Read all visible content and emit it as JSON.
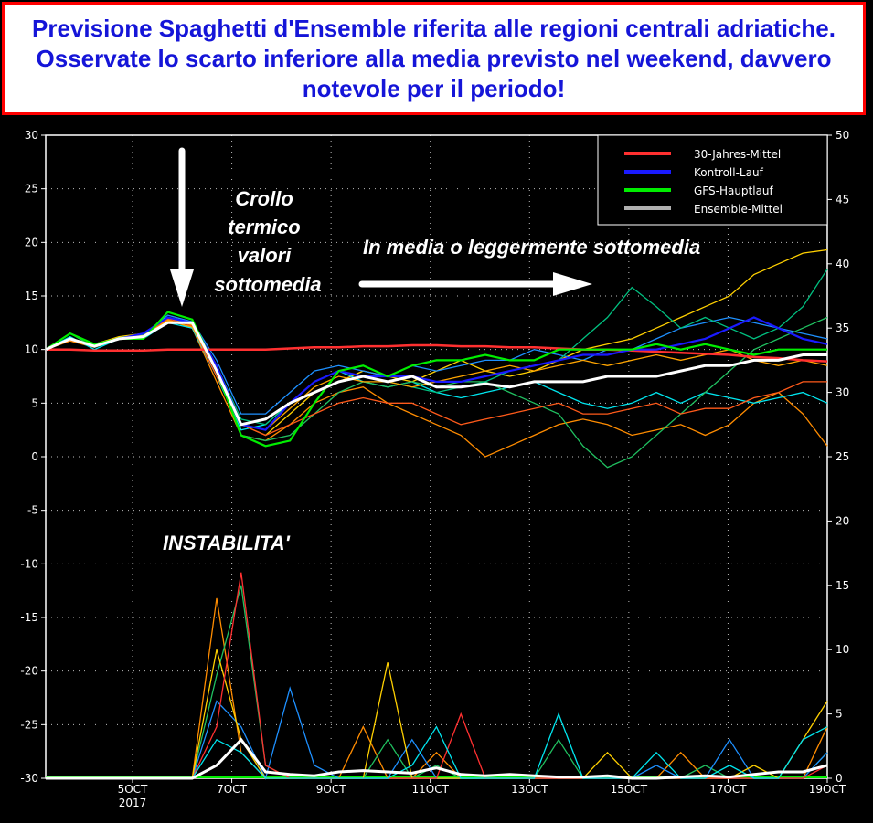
{
  "title": "Previsione Spaghetti d'Ensemble riferita alle regioni centrali adriatiche. Osservate lo scarto inferiore alla media previsto nel weekend, davvero notevole per il periodo!",
  "annotations": {
    "crollo": [
      "Crollo",
      "termico",
      "valori",
      "sottomedia"
    ],
    "media": "In media o leggermente sottomedia",
    "instabilita": "INSTABILITA'"
  },
  "chart_data": {
    "type": "line",
    "x_range_days": [
      3.25,
      19.0
    ],
    "x_ticks": [
      {
        "day": 5,
        "label": "5OCT",
        "sub": "2017"
      },
      {
        "day": 7,
        "label": "7OCT"
      },
      {
        "day": 9,
        "label": "9OCT"
      },
      {
        "day": 11,
        "label": "11OCT"
      },
      {
        "day": 13,
        "label": "13OCT"
      },
      {
        "day": 15,
        "label": "15OCT"
      },
      {
        "day": 17,
        "label": "17OCT"
      },
      {
        "day": 19,
        "label": "19OCT"
      }
    ],
    "ylim_left": [
      -30,
      30
    ],
    "y_ticks_left": [
      30,
      25,
      20,
      15,
      10,
      5,
      0,
      -5,
      -10,
      -15,
      -20,
      -25,
      -30
    ],
    "ylim_right": [
      0,
      50
    ],
    "y_ticks_right": [
      50,
      45,
      40,
      35,
      30,
      25,
      20,
      15,
      10,
      5,
      0
    ],
    "grid": true,
    "legend_position": "top-right",
    "legend": [
      {
        "name": "30-Jahres-Mittel",
        "color": "#ff3030"
      },
      {
        "name": "Kontroll-Lauf",
        "color": "#1a1aff"
      },
      {
        "name": "GFS-Hauptlauf",
        "color": "#00ee00"
      },
      {
        "name": "Ensemble-Mittel",
        "color": "#b0b0b0"
      }
    ],
    "temperature_series": [
      {
        "name": "member",
        "color": "#ff8c00",
        "values": [
          10,
          10.8,
          10.2,
          11,
          11.3,
          12.8,
          12,
          7,
          2,
          1.5,
          3,
          5,
          6,
          6.5,
          5,
          4,
          3,
          2,
          0,
          1,
          2,
          3,
          3.5,
          3,
          2,
          2.5,
          3,
          2,
          3,
          5,
          6,
          4,
          1
        ]
      },
      {
        "name": "member",
        "color": "#ffd000",
        "values": [
          10,
          11,
          10.5,
          11.2,
          11.5,
          13,
          12.3,
          8,
          3,
          2,
          4,
          6,
          7,
          8,
          7.5,
          7,
          8,
          9,
          8,
          7.5,
          8,
          9,
          10,
          10.5,
          11,
          12,
          13,
          14,
          15,
          17,
          18,
          19,
          19.3
        ]
      },
      {
        "name": "member",
        "color": "#00e5ee",
        "values": [
          10,
          11.2,
          10,
          11,
          11,
          12.5,
          12,
          7.5,
          2.5,
          3,
          5,
          7,
          8,
          7,
          6.5,
          7,
          6,
          5.5,
          6,
          6.5,
          7,
          6,
          5,
          4.5,
          5,
          6,
          5,
          6,
          5.5,
          5,
          5.5,
          6,
          5
        ]
      },
      {
        "name": "member",
        "color": "#1e90ff",
        "values": [
          10,
          11,
          10.4,
          11,
          11.4,
          13.2,
          12.6,
          9,
          4,
          4,
          6,
          8,
          8.5,
          8,
          7.5,
          8.5,
          8,
          8.5,
          9,
          9,
          10,
          9.5,
          9,
          10,
          10,
          11,
          12,
          12.5,
          13,
          12.5,
          12,
          11.5,
          11
        ]
      },
      {
        "name": "member",
        "color": "#20c060",
        "values": [
          10,
          11.5,
          10.2,
          11,
          11.2,
          13,
          12.5,
          8,
          2,
          1.5,
          2,
          4,
          6,
          7,
          6.5,
          7,
          6.5,
          7,
          7,
          6,
          5,
          4,
          1,
          -1,
          0,
          2,
          4,
          6,
          8,
          10,
          11,
          12,
          13
        ]
      },
      {
        "name": "member",
        "color": "#ff5a1a",
        "values": [
          10,
          10.9,
          10.3,
          11,
          11.2,
          12.9,
          12.2,
          7.5,
          3,
          2,
          3,
          4,
          5,
          5.5,
          5,
          5,
          4,
          3,
          3.5,
          4,
          4.5,
          5,
          4,
          4,
          4.5,
          5,
          4,
          4.5,
          4.5,
          5.5,
          6,
          7,
          7
        ]
      },
      {
        "name": "member",
        "color": "#00c080",
        "values": [
          10,
          11,
          10.4,
          11.1,
          11.4,
          13,
          12.4,
          8.5,
          3.5,
          3,
          5,
          6,
          7,
          7.5,
          7,
          6.5,
          6,
          6.5,
          7,
          8,
          8.5,
          9,
          11,
          13,
          15.8,
          14,
          12,
          13,
          12,
          11,
          12,
          14,
          17.5
        ]
      },
      {
        "name": "member",
        "color": "#ffa500",
        "values": [
          10,
          11,
          10.3,
          11,
          11.3,
          12.7,
          12.1,
          8,
          3,
          2.5,
          4.5,
          6.5,
          7.5,
          7,
          7,
          6.5,
          7,
          7.5,
          8,
          8.5,
          8,
          8.5,
          9,
          8.5,
          9,
          9.5,
          9,
          9.5,
          10,
          9,
          8.5,
          9,
          8.5
        ]
      },
      {
        "name": "30-Jahres-Mittel",
        "color": "#ff3030",
        "values": [
          10,
          10,
          9.9,
          9.9,
          9.9,
          10,
          10,
          10,
          10,
          10,
          10.1,
          10.2,
          10.2,
          10.3,
          10.3,
          10.4,
          10.4,
          10.3,
          10.3,
          10.2,
          10.2,
          10.1,
          10,
          10,
          9.9,
          9.8,
          9.7,
          9.6,
          9.5,
          9.3,
          9.2,
          9,
          8.9
        ]
      },
      {
        "name": "Kontroll-Lauf",
        "color": "#1a1aff",
        "values": [
          10,
          11,
          10.3,
          11,
          11.5,
          13,
          12.5,
          8.5,
          3,
          2.5,
          5,
          7,
          8,
          7.5,
          7.5,
          7.5,
          7,
          7,
          7.5,
          8,
          8.5,
          9,
          9.5,
          9.5,
          10,
          10,
          10.5,
          11,
          12,
          13,
          12,
          11,
          10.5
        ]
      },
      {
        "name": "GFS-Hauptlauf",
        "color": "#00ee00",
        "values": [
          10,
          11.5,
          10.5,
          11,
          11,
          13.5,
          12.8,
          8,
          2,
          1,
          1.5,
          5,
          8,
          8.5,
          7.5,
          8.5,
          9,
          9,
          9.5,
          9,
          9,
          10,
          10,
          10,
          10,
          10.5,
          10,
          10.5,
          10,
          9.5,
          10,
          10,
          10
        ]
      },
      {
        "name": "Ensemble-Mittel",
        "color": "#ffffff",
        "values": [
          10,
          11,
          10.3,
          11,
          11.2,
          12.5,
          12.5,
          8,
          3,
          3.5,
          5,
          6,
          7,
          7.5,
          7,
          7.5,
          6.5,
          6.5,
          6.8,
          6.5,
          7,
          7,
          7,
          7.5,
          7.5,
          7.5,
          8,
          8.5,
          8.5,
          9,
          9,
          9.5,
          9.5
        ]
      }
    ],
    "precipitation_series": [
      {
        "name": "member",
        "color": "#ff8c00",
        "values": [
          0,
          0,
          0,
          0,
          0,
          0,
          0,
          14,
          2,
          0,
          0,
          0,
          0,
          4,
          0,
          0,
          2,
          0,
          0,
          0,
          0,
          0,
          0,
          0,
          0,
          0,
          2,
          0,
          0,
          0,
          0,
          0,
          4
        ]
      },
      {
        "name": "member",
        "color": "#20c060",
        "values": [
          0,
          0,
          0,
          0,
          0,
          0,
          0,
          8,
          15,
          1,
          0,
          0,
          0,
          0,
          3,
          0,
          1,
          0,
          0,
          0,
          0,
          3,
          0,
          0,
          0,
          0,
          0,
          1,
          0,
          0,
          0,
          0,
          2
        ]
      },
      {
        "name": "member",
        "color": "#1e90ff",
        "values": [
          0,
          0,
          0,
          0,
          0,
          0,
          0,
          6,
          4,
          0,
          7,
          1,
          0,
          0,
          0,
          3,
          0,
          0,
          0,
          0,
          0,
          0,
          0,
          0,
          0,
          1,
          0,
          0,
          3,
          0,
          0,
          0,
          2
        ]
      },
      {
        "name": "member",
        "color": "#ffd000",
        "values": [
          0,
          0,
          0,
          0,
          0,
          0,
          0,
          10,
          3,
          0,
          0,
          0,
          0,
          0,
          9,
          0,
          0,
          0,
          0,
          0,
          0,
          0,
          0,
          2,
          0,
          0,
          0,
          0,
          0,
          1,
          0,
          3,
          6
        ]
      },
      {
        "name": "member",
        "color": "#ff3030",
        "values": [
          0,
          0,
          0,
          0,
          0,
          0,
          0,
          4,
          16,
          1,
          0,
          0,
          0,
          0,
          0,
          0,
          0,
          5,
          0,
          0,
          0,
          0,
          0,
          0,
          0,
          0,
          0,
          0,
          0,
          0,
          0,
          0,
          1
        ]
      },
      {
        "name": "member",
        "color": "#00e5ee",
        "values": [
          0,
          0,
          0,
          0,
          0,
          0,
          0,
          3,
          2,
          0,
          0,
          0,
          0,
          0,
          0,
          1,
          4,
          0,
          0,
          0,
          0,
          5,
          0,
          0,
          0,
          2,
          0,
          0,
          1,
          0,
          0,
          3,
          4
        ]
      },
      {
        "name": "Ensemble-Mittel",
        "color": "#ffffff",
        "values": [
          0,
          0,
          0,
          0,
          0,
          0,
          0,
          1,
          3,
          0.5,
          0.3,
          0.2,
          0.5,
          0.6,
          0.5,
          0.4,
          0.8,
          0.3,
          0.2,
          0.3,
          0.2,
          0.1,
          0.1,
          0.2,
          0,
          0,
          0.1,
          0.2,
          0.1,
          0.3,
          0.5,
          0.5,
          1
        ]
      }
    ]
  }
}
